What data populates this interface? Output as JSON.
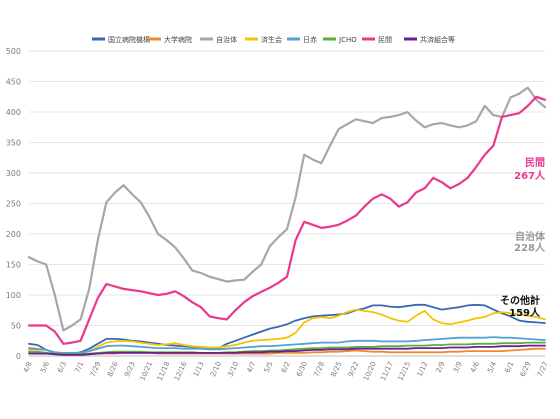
{
  "chart_data": {
    "type": "line",
    "ylim": [
      0,
      500
    ],
    "yticks": [
      0,
      50,
      100,
      150,
      200,
      250,
      300,
      350,
      400,
      450,
      500
    ],
    "grid": true,
    "legend_position": "top",
    "categories": [
      "4/8",
      "4/22",
      "5/6",
      "5/20",
      "6/3",
      "6/17",
      "7/1",
      "7/15",
      "7/29",
      "8/12",
      "8/26",
      "9/9",
      "9/23",
      "10/7",
      "10/21",
      "11/4",
      "11/18",
      "12/2",
      "12/16",
      "12/30",
      "1/13",
      "1/27",
      "2/10",
      "2/24",
      "3/10",
      "3/24",
      "4/7",
      "4/21",
      "5/5",
      "5/19",
      "6/2",
      "6/16",
      "6/30",
      "7/14",
      "7/28",
      "8/11",
      "8/25",
      "9/8",
      "9/22",
      "10/6",
      "10/20",
      "11/3",
      "11/17",
      "12/1",
      "12/15",
      "12/29",
      "1/12",
      "1/26",
      "2/9",
      "2/23",
      "3/9",
      "3/23",
      "4/6",
      "4/20",
      "5/4",
      "5/18",
      "6/1",
      "6/15",
      "6/29",
      "7/13",
      "7/27"
    ],
    "x_tick_labels": [
      "4/8",
      "5/6",
      "6/3",
      "7/1",
      "7/29",
      "8/26",
      "9/23",
      "10/21",
      "11/18",
      "12/16",
      "1/13",
      "2/10",
      "3/10",
      "4/7",
      "5/5",
      "6/2",
      "6/30",
      "7/28",
      "8/25",
      "9/22",
      "10/20",
      "11/17",
      "12/15",
      "1/12",
      "2/9",
      "3/9",
      "4/6",
      "5/4",
      "6/1",
      "6/29",
      "7/27"
    ],
    "series": [
      {
        "name": "国立病院機構",
        "color": "#3a66b7",
        "values": [
          20,
          18,
          10,
          5,
          4,
          4,
          6,
          12,
          20,
          28,
          28,
          27,
          25,
          24,
          22,
          20,
          18,
          17,
          16,
          15,
          14,
          13,
          12,
          20,
          25,
          30,
          35,
          40,
          45,
          48,
          52,
          58,
          62,
          65,
          66,
          67,
          68,
          70,
          75,
          78,
          83,
          83,
          81,
          80,
          82,
          84,
          84,
          80,
          76,
          78,
          80,
          83,
          84,
          83,
          76,
          70,
          65,
          58,
          56,
          55,
          54
        ]
      },
      {
        "name": "大学病院",
        "color": "#ef8a2c",
        "values": [
          8,
          7,
          5,
          3,
          2,
          2,
          2,
          3,
          4,
          4,
          4,
          5,
          5,
          5,
          5,
          4,
          4,
          4,
          4,
          4,
          4,
          4,
          4,
          4,
          4,
          4,
          4,
          4,
          4,
          5,
          5,
          5,
          5,
          6,
          6,
          7,
          7,
          8,
          9,
          8,
          7,
          7,
          6,
          6,
          6,
          6,
          6,
          6,
          6,
          7,
          7,
          8,
          8,
          8,
          8,
          8,
          9,
          10,
          11,
          12,
          12
        ]
      },
      {
        "name": "自治体",
        "color": "#a7a7a7",
        "values": [
          162,
          155,
          150,
          100,
          42,
          50,
          60,
          110,
          190,
          252,
          268,
          280,
          265,
          252,
          228,
          200,
          190,
          178,
          160,
          140,
          136,
          130,
          126,
          122,
          124,
          125,
          138,
          150,
          180,
          195,
          208,
          260,
          330,
          322,
          316,
          345,
          372,
          380,
          388,
          385,
          382,
          390,
          392,
          395,
          400,
          386,
          375,
          380,
          382,
          378,
          375,
          378,
          385,
          410,
          395,
          392,
          424,
          430,
          440,
          420,
          408
        ]
      },
      {
        "name": "済生会",
        "color": "#f2c500",
        "values": [
          14,
          12,
          10,
          6,
          4,
          4,
          5,
          8,
          15,
          22,
          24,
          25,
          24,
          22,
          20,
          18,
          19,
          21,
          18,
          16,
          15,
          14,
          14,
          16,
          18,
          22,
          25,
          26,
          27,
          28,
          30,
          38,
          55,
          62,
          64,
          62,
          66,
          72,
          76,
          74,
          72,
          68,
          62,
          58,
          56,
          66,
          74,
          60,
          54,
          52,
          55,
          58,
          62,
          64,
          70,
          72,
          70,
          68,
          66,
          64,
          60
        ]
      },
      {
        "name": "日赤",
        "color": "#56a0d3",
        "values": [
          12,
          11,
          10,
          6,
          5,
          5,
          5,
          8,
          12,
          16,
          17,
          17,
          16,
          15,
          14,
          13,
          13,
          13,
          12,
          12,
          12,
          11,
          11,
          12,
          13,
          14,
          15,
          16,
          16,
          17,
          18,
          19,
          20,
          21,
          22,
          22,
          22,
          24,
          25,
          25,
          25,
          24,
          24,
          24,
          24,
          25,
          26,
          27,
          28,
          29,
          30,
          30,
          30,
          30,
          31,
          30,
          30,
          29,
          28,
          27,
          26
        ]
      },
      {
        "name": "JCHO",
        "color": "#5dad3a",
        "values": [
          6,
          6,
          5,
          4,
          3,
          3,
          3,
          4,
          5,
          6,
          7,
          7,
          7,
          7,
          6,
          6,
          6,
          6,
          6,
          6,
          5,
          5,
          5,
          6,
          6,
          7,
          8,
          8,
          9,
          9,
          10,
          11,
          12,
          13,
          13,
          14,
          14,
          14,
          15,
          15,
          15,
          16,
          16,
          16,
          17,
          17,
          17,
          18,
          18,
          19,
          19,
          19,
          20,
          20,
          20,
          21,
          21,
          21,
          22,
          22,
          22
        ]
      },
      {
        "name": "民間",
        "color": "#e8388f",
        "values": [
          50,
          50,
          50,
          40,
          20,
          22,
          25,
          60,
          95,
          118,
          114,
          110,
          108,
          106,
          103,
          100,
          102,
          106,
          98,
          88,
          80,
          65,
          62,
          60,
          75,
          88,
          98,
          105,
          112,
          120,
          130,
          190,
          220,
          215,
          210,
          212,
          215,
          222,
          230,
          245,
          258,
          265,
          258,
          245,
          252,
          268,
          275,
          292,
          285,
          275,
          282,
          292,
          310,
          330,
          345,
          392,
          395,
          398,
          410,
          425,
          420
        ]
      },
      {
        "name": "共済組合等",
        "color": "#6a1f9a",
        "values": [
          4,
          4,
          4,
          3,
          2,
          2,
          2,
          3,
          4,
          5,
          5,
          5,
          5,
          5,
          5,
          5,
          5,
          5,
          5,
          5,
          5,
          5,
          5,
          5,
          5,
          6,
          6,
          6,
          7,
          7,
          8,
          8,
          9,
          10,
          10,
          11,
          11,
          11,
          12,
          12,
          12,
          12,
          12,
          12,
          12,
          13,
          13,
          13,
          13,
          14,
          14,
          14,
          15,
          15,
          15,
          16,
          16,
          16,
          17,
          17,
          17
        ]
      }
    ],
    "annotations": [
      {
        "text": "民間",
        "color": "#e8388f"
      },
      {
        "text": "267人",
        "color": "#e8388f"
      },
      {
        "text": "自治体",
        "color": "#999999"
      },
      {
        "text": "228人",
        "color": "#999999"
      },
      {
        "text": "その他計",
        "color": "#111111"
      },
      {
        "text": "159人",
        "color": "#111111"
      }
    ]
  }
}
